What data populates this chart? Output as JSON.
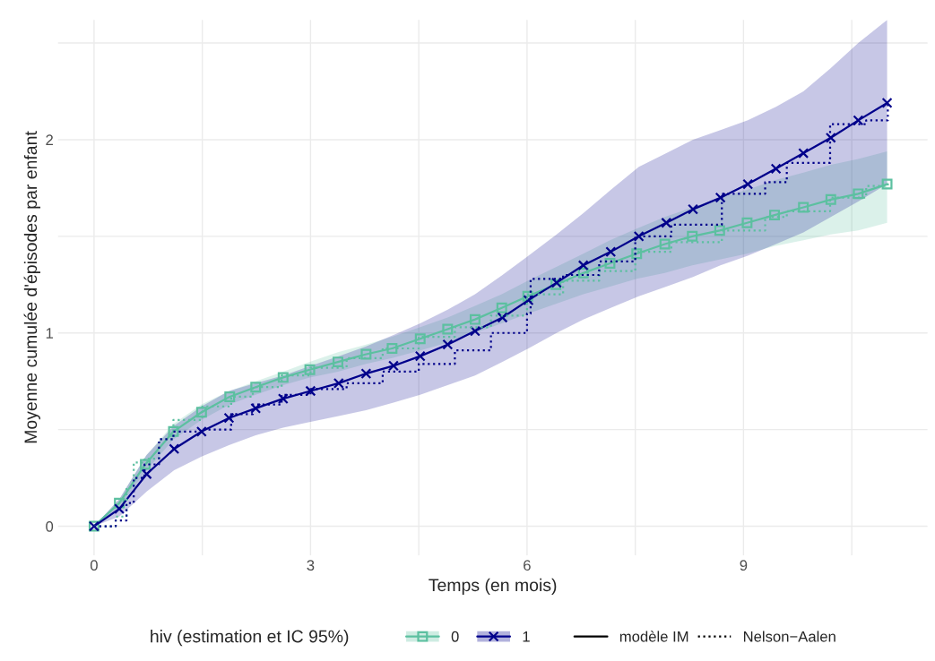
{
  "chart_data": {
    "type": "line",
    "xlabel": "Temps (en mois)",
    "ylabel": "Moyenne cumulée d'épisodes par enfant",
    "legend_title": "hiv (estimation et IC 95%)",
    "annotations": [
      "modèle IM",
      "Nelson−Aalen"
    ],
    "xlim": [
      -0.5,
      11.55
    ],
    "ylim": [
      -0.15,
      2.62
    ],
    "xticks": [
      0,
      {
        "value": 1.5,
        "label": null
      },
      3,
      {
        "value": 4.5,
        "label": null
      },
      6,
      {
        "value": 7.5,
        "label": null
      },
      9,
      {
        "value": 10.5,
        "label": null
      }
    ],
    "yticks": [
      0,
      {
        "value": 0.5,
        "label": null
      },
      1,
      {
        "value": 1.5,
        "label": null
      },
      2,
      {
        "value": 2.5,
        "label": null
      }
    ],
    "grid": true,
    "legend": "bottom",
    "series": [
      {
        "name": "0",
        "color": "#5cc0a0",
        "marker": "square",
        "line_style": "solid",
        "x": [
          0,
          0.35,
          0.71,
          1.1,
          1.49,
          1.88,
          2.24,
          2.62,
          2.99,
          3.38,
          3.77,
          4.13,
          4.52,
          4.9,
          5.28,
          5.65,
          6.01,
          6.4,
          6.78,
          7.15,
          7.52,
          7.91,
          8.29,
          8.67,
          9.05,
          9.43,
          9.83,
          10.21,
          10.59,
          10.99
        ],
        "values": [
          0,
          0.12,
          0.32,
          0.49,
          0.59,
          0.67,
          0.72,
          0.77,
          0.81,
          0.85,
          0.89,
          0.92,
          0.97,
          1.02,
          1.07,
          1.13,
          1.19,
          1.25,
          1.31,
          1.36,
          1.41,
          1.46,
          1.5,
          1.53,
          1.57,
          1.61,
          1.65,
          1.69,
          1.72,
          1.77
        ],
        "lower": [
          0,
          0.1,
          0.28,
          0.45,
          0.55,
          0.63,
          0.68,
          0.73,
          0.77,
          0.8,
          0.84,
          0.87,
          0.91,
          0.95,
          1.0,
          1.05,
          1.1,
          1.15,
          1.2,
          1.24,
          1.28,
          1.31,
          1.35,
          1.38,
          1.41,
          1.45,
          1.48,
          1.51,
          1.53,
          1.57
        ],
        "upper": [
          0,
          0.14,
          0.36,
          0.53,
          0.63,
          0.7,
          0.75,
          0.8,
          0.85,
          0.9,
          0.94,
          0.98,
          1.03,
          1.08,
          1.14,
          1.2,
          1.27,
          1.34,
          1.41,
          1.48,
          1.54,
          1.6,
          1.65,
          1.7,
          1.74,
          1.79,
          1.83,
          1.87,
          1.9,
          1.94
        ]
      },
      {
        "name": "1",
        "color": "#00008b",
        "marker": "cross",
        "line_style": "solid",
        "x": [
          0,
          0.35,
          0.73,
          1.11,
          1.49,
          1.87,
          2.24,
          2.62,
          3.0,
          3.39,
          3.77,
          4.15,
          4.52,
          4.9,
          5.28,
          5.66,
          6.02,
          6.41,
          6.78,
          7.16,
          7.55,
          7.93,
          8.3,
          8.68,
          9.06,
          9.45,
          9.83,
          10.21,
          10.59,
          10.99
        ],
        "values": [
          0,
          0.09,
          0.27,
          0.4,
          0.49,
          0.56,
          0.61,
          0.66,
          0.7,
          0.74,
          0.79,
          0.83,
          0.88,
          0.94,
          1.01,
          1.08,
          1.17,
          1.26,
          1.35,
          1.42,
          1.5,
          1.57,
          1.64,
          1.7,
          1.77,
          1.85,
          1.93,
          2.01,
          2.1,
          2.19
        ],
        "lower": [
          0,
          0.05,
          0.18,
          0.29,
          0.36,
          0.42,
          0.47,
          0.51,
          0.54,
          0.57,
          0.6,
          0.64,
          0.68,
          0.73,
          0.78,
          0.85,
          0.92,
          1.0,
          1.07,
          1.13,
          1.19,
          1.24,
          1.29,
          1.35,
          1.4,
          1.46,
          1.52,
          1.6,
          1.68,
          1.77
        ],
        "upper": [
          0,
          0.14,
          0.37,
          0.52,
          0.62,
          0.7,
          0.74,
          0.78,
          0.83,
          0.88,
          0.93,
          0.99,
          1.05,
          1.12,
          1.2,
          1.3,
          1.4,
          1.51,
          1.62,
          1.74,
          1.86,
          1.93,
          2.0,
          2.05,
          2.1,
          2.17,
          2.25,
          2.37,
          2.5,
          2.62
        ]
      },
      {
        "type": "step",
        "color": "#5cc0a0",
        "marker": "none",
        "line_style": "dotted",
        "x": [
          0,
          0.3,
          0.45,
          0.55,
          0.7,
          0.9,
          1.1,
          1.5,
          1.9,
          2.2,
          2.6,
          3.0,
          3.5,
          4.0,
          4.5,
          5.0,
          5.5,
          6.0,
          6.05,
          6.5,
          7.0,
          7.5,
          8.0,
          8.7,
          9.3,
          9.6,
          10.2,
          10.7,
          11.0
        ],
        "values": [
          0,
          0.05,
          0.2,
          0.33,
          0.35,
          0.45,
          0.55,
          0.62,
          0.67,
          0.72,
          0.78,
          0.82,
          0.87,
          0.92,
          0.98,
          1.03,
          1.09,
          1.2,
          1.2,
          1.27,
          1.32,
          1.42,
          1.47,
          1.53,
          1.6,
          1.63,
          1.7,
          1.76,
          1.78
        ]
      },
      {
        "type": "step",
        "color": "#00008b",
        "marker": "none",
        "line_style": "dotted",
        "x": [
          0,
          0.3,
          0.45,
          0.55,
          0.7,
          0.9,
          1.1,
          1.5,
          1.9,
          2.2,
          2.6,
          3.0,
          3.5,
          4.0,
          4.5,
          5.0,
          5.5,
          6.0,
          6.05,
          6.5,
          7.0,
          7.5,
          8.0,
          8.7,
          9.3,
          9.6,
          10.2,
          10.7,
          11.0
        ],
        "values": [
          0,
          0.03,
          0.12,
          0.25,
          0.32,
          0.45,
          0.49,
          0.5,
          0.58,
          0.63,
          0.68,
          0.71,
          0.74,
          0.8,
          0.84,
          0.91,
          1.0,
          1.1,
          1.28,
          1.3,
          1.37,
          1.5,
          1.56,
          1.72,
          1.78,
          1.88,
          2.08,
          2.1,
          2.2
        ]
      }
    ]
  }
}
